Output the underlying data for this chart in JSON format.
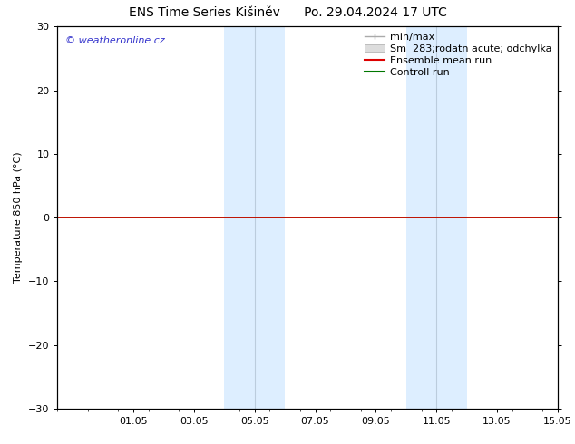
{
  "title_left": "ENS Time Series Kišiněv",
  "title_right": "Po. 29.04.2024 17 UTC",
  "ylabel": "Temperature 850 hPa (°C)",
  "ylim": [
    -30,
    30
  ],
  "yticks": [
    -30,
    -20,
    -10,
    0,
    10,
    20,
    30
  ],
  "x_min": 0.0,
  "x_max": 16.5,
  "xtick_labels": [
    "01.05",
    "03.05",
    "05.05",
    "07.05",
    "09.05",
    "11.05",
    "13.05",
    "15.05"
  ],
  "xtick_positions": [
    2.5,
    4.5,
    6.5,
    8.5,
    10.5,
    12.5,
    14.5,
    16.5
  ],
  "watermark": "© weatheronline.cz",
  "watermark_color": "#3333cc",
  "background_color": "#ffffff",
  "plot_bg_color": "#ffffff",
  "line_y_value": 0.0,
  "line_color_ensemble": "#dd0000",
  "line_color_control": "#007700",
  "shaded_bands": [
    {
      "x_start": 5.5,
      "x_end": 7.5,
      "color": "#ddeeff"
    },
    {
      "x_start": 11.5,
      "x_end": 13.5,
      "color": "#ddeeff"
    }
  ],
  "divider_lines": [
    6.5,
    12.5
  ],
  "legend_minmax_color": "#aaaaaa",
  "legend_band_color": "#dddddd",
  "font_size_title": 10,
  "font_size_axis": 8,
  "font_size_legend": 8,
  "font_size_watermark": 8
}
